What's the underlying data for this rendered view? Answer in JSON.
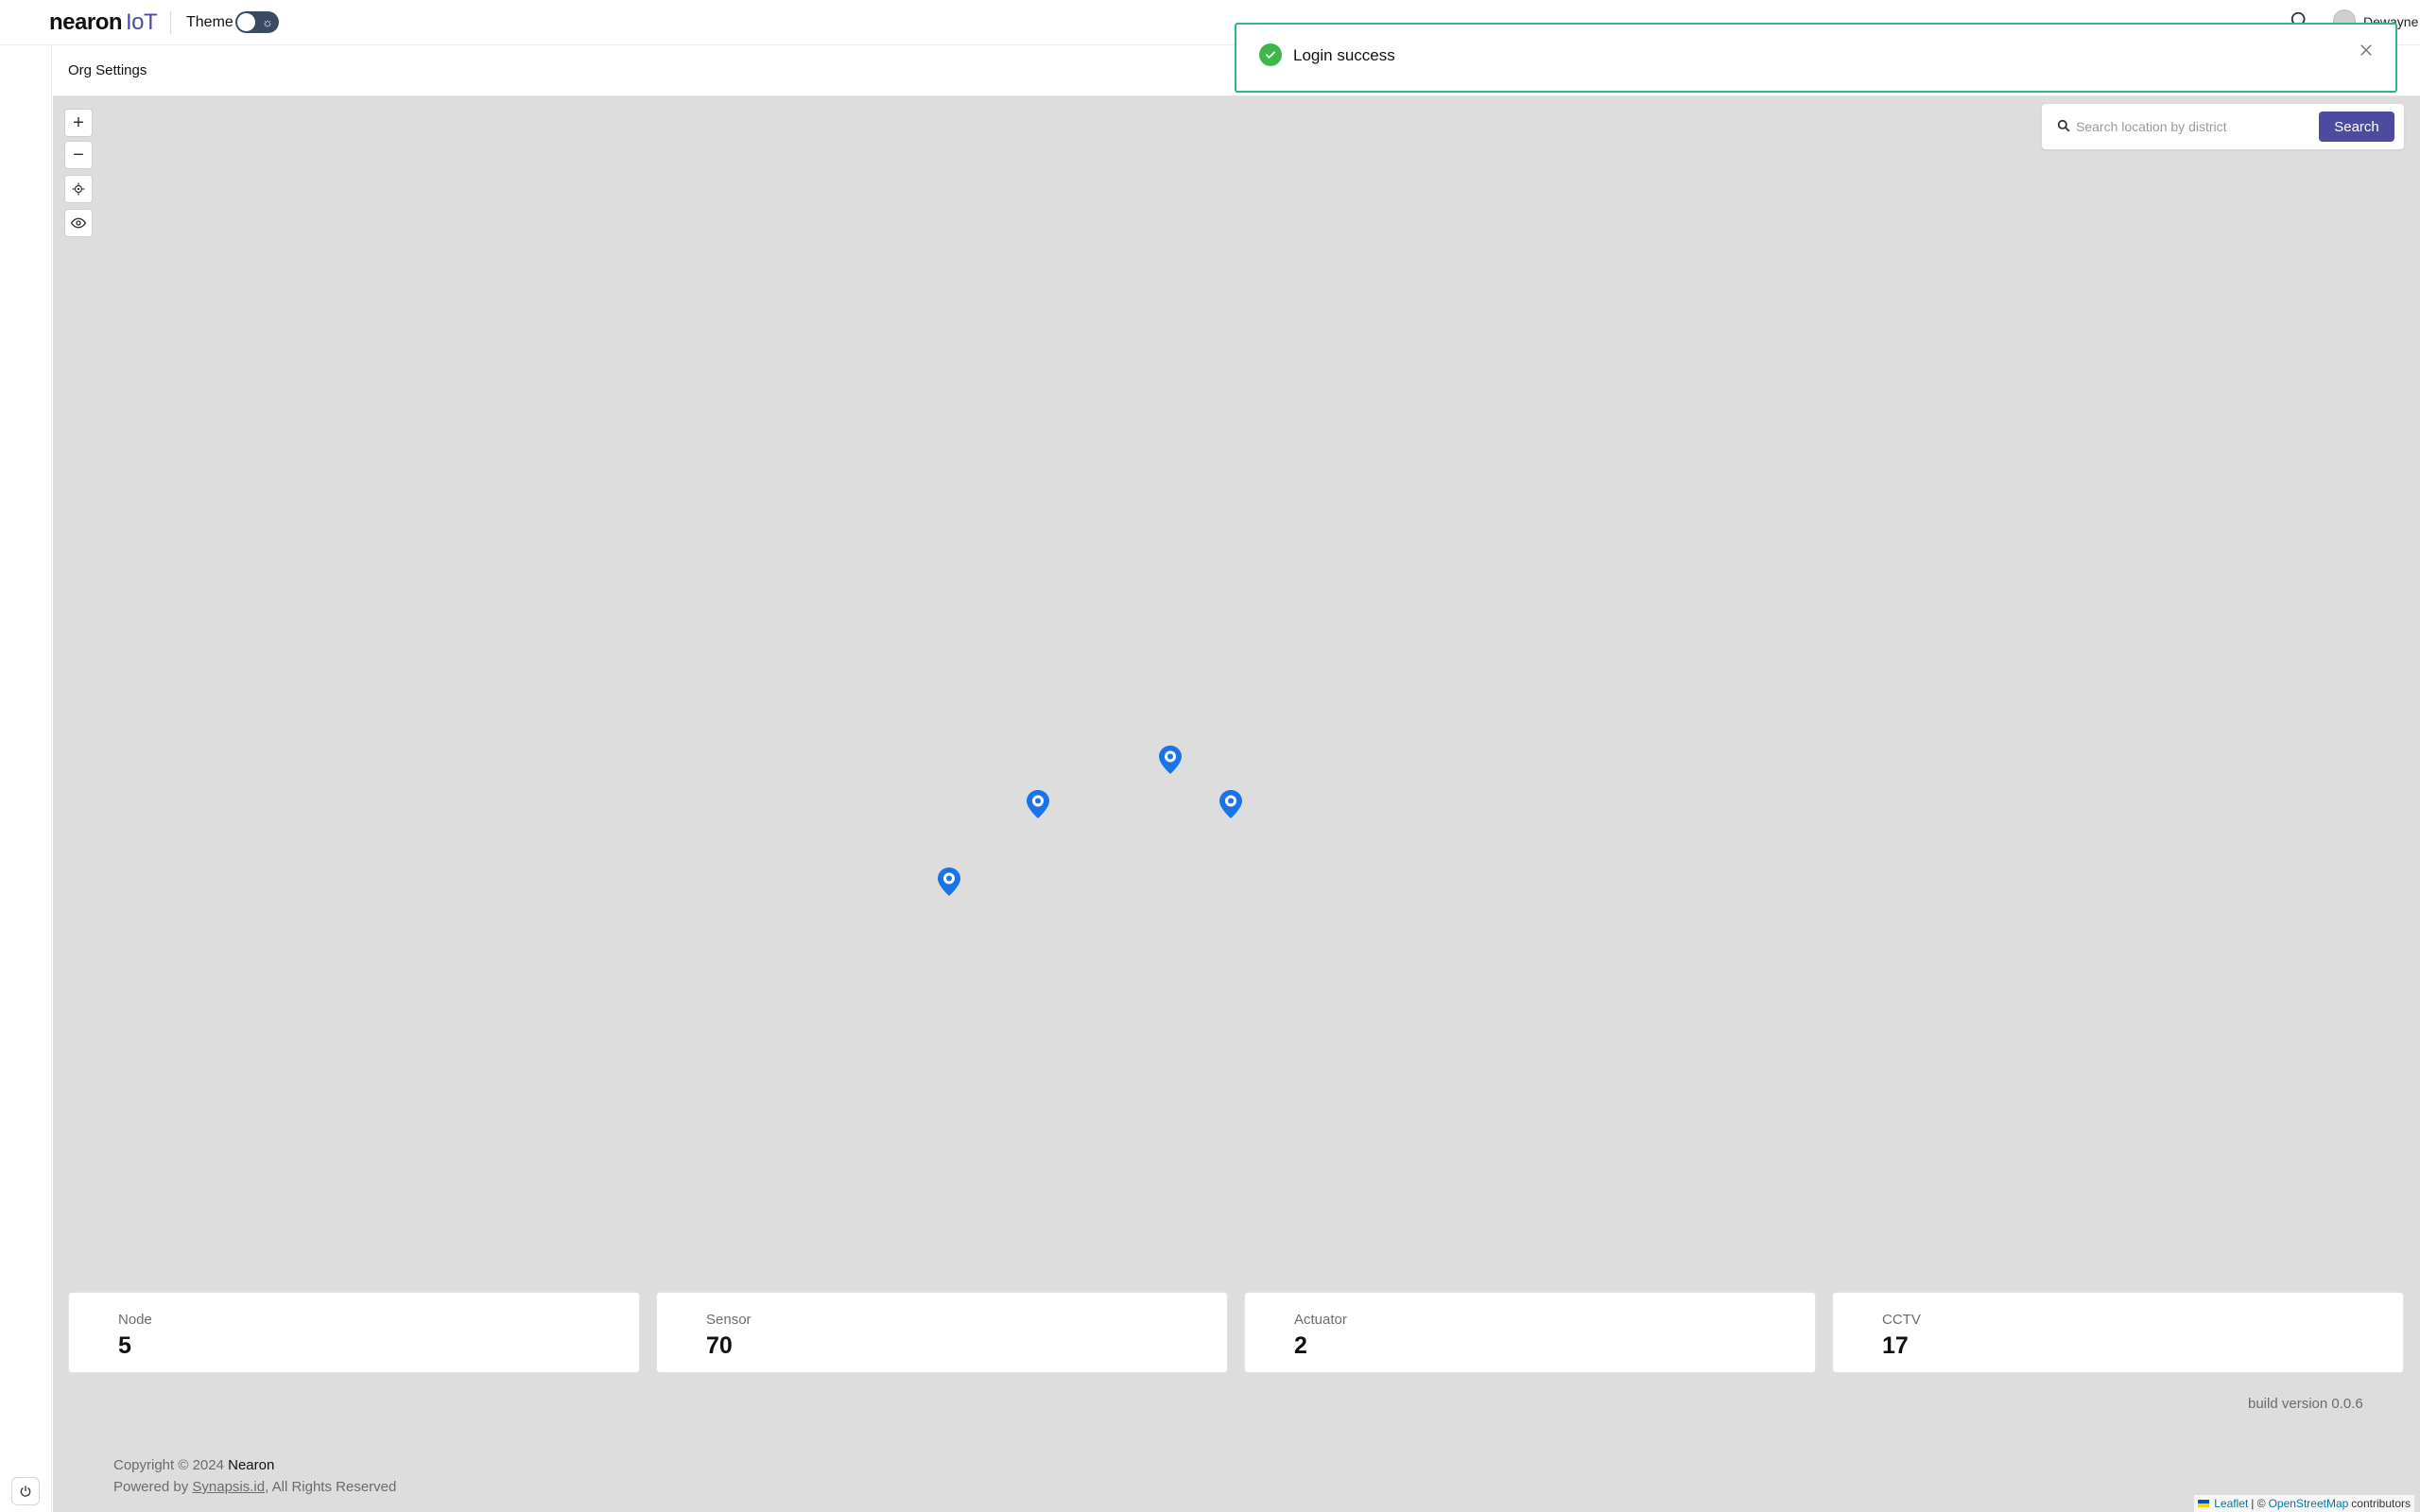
{
  "header": {
    "logo_main": "nearon",
    "logo_sub": "IoT",
    "theme_label": "Theme",
    "username": "Dewayne"
  },
  "subheader": {
    "title": "Org Settings"
  },
  "map": {
    "controls": {
      "zoom_in": "+",
      "zoom_out": "−"
    },
    "search": {
      "placeholder": "Search location by district",
      "button_label": "Search"
    },
    "markers": 4
  },
  "toast": {
    "message": "Login success"
  },
  "stats": [
    {
      "label": "Node",
      "value": "5"
    },
    {
      "label": "Sensor",
      "value": "70"
    },
    {
      "label": "Actuator",
      "value": "2"
    },
    {
      "label": "CCTV",
      "value": "17"
    }
  ],
  "footer": {
    "build": "build version 0.0.6",
    "copyright_prefix": "Copyright © 2024",
    "copyright_brand": "Nearon",
    "powered_prefix": "Powered by",
    "powered_link": "Synapsis.id",
    "powered_suffix": ", All Rights Reserved"
  },
  "attribution": {
    "leaflet": "Leaflet",
    "sep": "| ©",
    "osm": "OpenStreetMap",
    "contributors": "contributors"
  },
  "colors": {
    "accent": "#4c4ba0",
    "success": "#3cb84a",
    "toast_border": "#2fb58a",
    "marker": "#1a73e8",
    "map_bg": "#dddddd"
  }
}
